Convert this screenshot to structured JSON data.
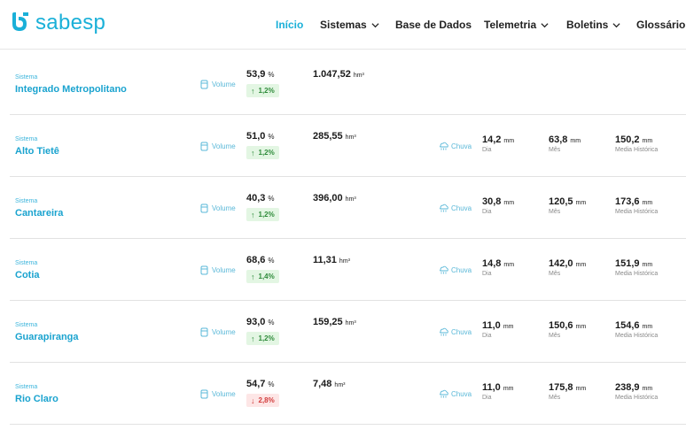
{
  "brand": {
    "name": "sabesp",
    "color": "#1ab0d8"
  },
  "nav": [
    {
      "label": "Início",
      "active": true,
      "dropdown": false
    },
    {
      "label": "Sistemas",
      "active": false,
      "dropdown": true
    },
    {
      "label": "Base de Dados",
      "active": false,
      "dropdown": false
    },
    {
      "label": "Telemetria",
      "active": false,
      "dropdown": true
    },
    {
      "label": "Boletins",
      "active": false,
      "dropdown": true
    },
    {
      "label": "Glossário",
      "active": false,
      "dropdown": false
    }
  ],
  "labels": {
    "sistema": "Sistema",
    "volume": "Volume",
    "chuva": "Chuva",
    "dia": "Dia",
    "mes": "Mês",
    "media_historica": "Media Histórica",
    "pct_unit": "%",
    "vol_unit": "hm³",
    "rain_unit": "mm"
  },
  "systems": [
    {
      "name": "Integrado Metropolitano",
      "volume_pct": "53,9",
      "change": "1,2%",
      "direction": "up",
      "volume_hm3": "1.047,52",
      "has_rain": false
    },
    {
      "name": "Alto Tietê",
      "volume_pct": "51,0",
      "change": "1,2%",
      "direction": "up",
      "volume_hm3": "285,55",
      "has_rain": true,
      "rain_day": "14,2",
      "rain_month": "63,8",
      "rain_hist": "150,2"
    },
    {
      "name": "Cantareira",
      "volume_pct": "40,3",
      "change": "1,2%",
      "direction": "up",
      "volume_hm3": "396,00",
      "has_rain": true,
      "rain_day": "30,8",
      "rain_month": "120,5",
      "rain_hist": "173,6"
    },
    {
      "name": "Cotia",
      "volume_pct": "68,6",
      "change": "1,4%",
      "direction": "up",
      "volume_hm3": "11,31",
      "has_rain": true,
      "rain_day": "14,8",
      "rain_month": "142,0",
      "rain_hist": "151,9"
    },
    {
      "name": "Guarapiranga",
      "volume_pct": "93,0",
      "change": "1,2%",
      "direction": "up",
      "volume_hm3": "159,25",
      "has_rain": true,
      "rain_day": "11,0",
      "rain_month": "150,6",
      "rain_hist": "154,6"
    },
    {
      "name": "Rio Claro",
      "volume_pct": "54,7",
      "change": "2,8%",
      "direction": "down",
      "volume_hm3": "7,48",
      "has_rain": true,
      "rain_day": "11,0",
      "rain_month": "175,8",
      "rain_hist": "238,9"
    }
  ],
  "icons": {
    "logo": "sabesp-logo-icon",
    "volume": "water-tank-icon",
    "rain": "rain-cloud-icon",
    "chevron": "chevron-down-icon",
    "up": "arrow-up-icon",
    "down": "arrow-down-icon"
  },
  "colors": {
    "accent": "#1ab0d8",
    "positive_bg": "#e3f6e3",
    "positive_text": "#2e8b3a",
    "negative_bg": "#fde6e6",
    "negative_text": "#d23b3b"
  }
}
